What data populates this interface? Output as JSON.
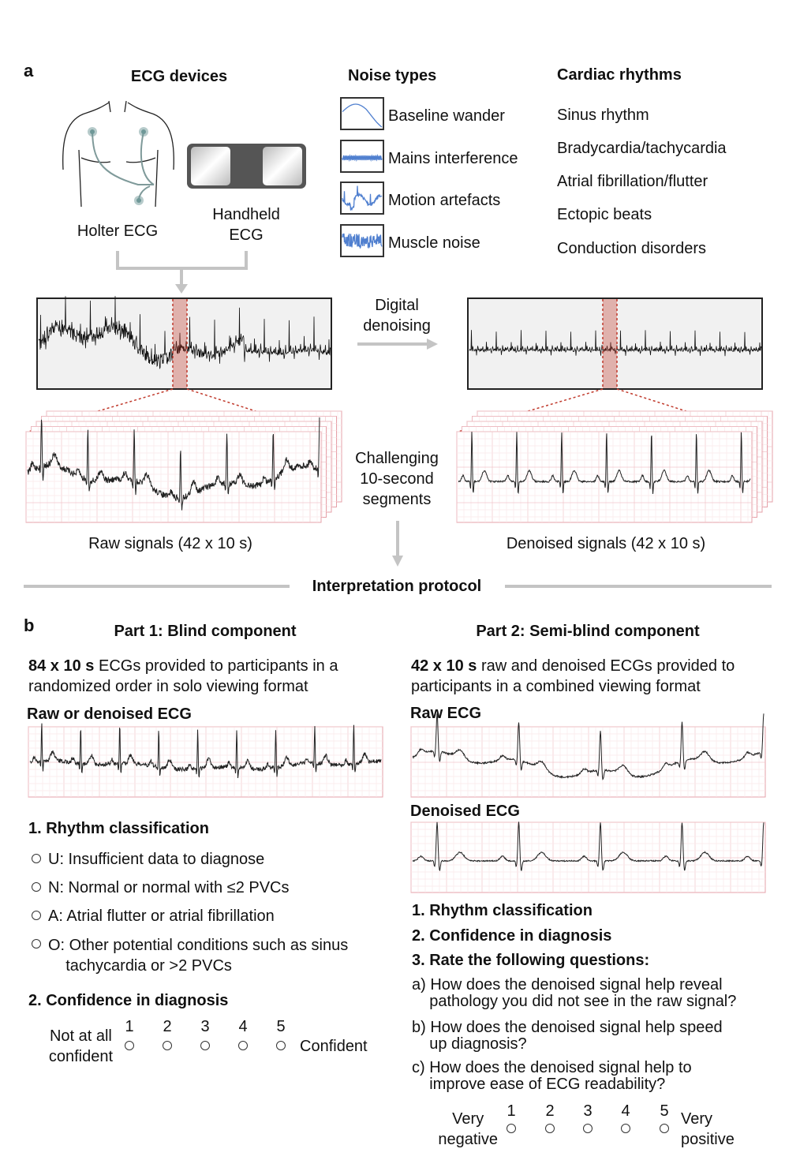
{
  "panel_a": {
    "label": "a",
    "ecg_devices": {
      "title": "ECG devices",
      "holter": "Holter ECG",
      "handheld": "Handheld\nECG"
    },
    "noise_types": {
      "title": "Noise types",
      "items": [
        "Baseline wander",
        "Mains interference",
        "Motion artefacts",
        "Muscle noise"
      ],
      "color": "#4f7fcf"
    },
    "cardiac_rhythms": {
      "title": "Cardiac rhythms",
      "items": [
        "Sinus rhythm",
        "Bradycardia/tachycardia",
        "Atrial fibrillation/flutter",
        "Ectopic beats",
        "Conduction disorders"
      ]
    },
    "denoising_label": "Digital\ndenoising",
    "segments_label": "Challenging\n10-second\nsegments",
    "raw_label": "Raw signals (42 x 10 s)",
    "denoised_label": "Denoised signals (42 x 10 s)",
    "protocol_label": "Interpretation protocol",
    "highlight_color": "#c0392b"
  },
  "panel_b": {
    "label": "b",
    "part1": {
      "title": "Part 1: Blind component",
      "desc_bold": "84 x 10 s",
      "desc_rest": " ECGs provided to participants in a\nrandomized order in solo viewing format",
      "strip_label": "Raw or denoised ECG",
      "q1": "1.  Rhythm classification",
      "options": [
        "U: Insufficient data to diagnose",
        "N: Normal or normal with ≤2 PVCs",
        "A: Atrial flutter or atrial fibrillation",
        "O: Other potential conditions such as sinus\n    tachycardia or >2 PVCs"
      ],
      "q2": "2.  Confidence in diagnosis",
      "scale_low": "Not at all\nconfident",
      "scale_high": "Confident",
      "scale": [
        "1",
        "2",
        "3",
        "4",
        "5"
      ]
    },
    "part2": {
      "title": "Part 2: Semi-blind component",
      "desc_bold": "42 x 10 s",
      "desc_rest": " raw and denoised ECGs provided to\nparticipants in a combined viewing format",
      "raw_label": "Raw ECG",
      "denoised_label": "Denoised ECG",
      "q1": "1.  Rhythm classification",
      "q2": "2.  Confidence in diagnosis",
      "q3": "3.  Rate the following questions:",
      "questions": [
        "a) How does the denoised signal help reveal\n    pathology you did not see in the raw signal?",
        "b) How does the denoised signal help speed\n    up diagnosis?",
        "c) How does the denoised signal help to\n    improve ease of ECG readability?"
      ],
      "scale_low": "Very\nnegative",
      "scale_high": "Very\npositive",
      "scale": [
        "1",
        "2",
        "3",
        "4",
        "5"
      ]
    }
  }
}
